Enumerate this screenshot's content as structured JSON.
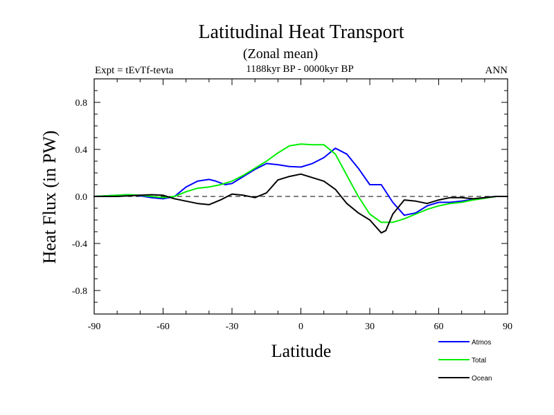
{
  "chart_data": {
    "type": "line",
    "title": "Latitudinal Heat Transport",
    "subtitle": "(Zonal mean)",
    "left_label": "Expt = tEvTf-tevta",
    "center_label": "1188kyr BP - 0000kyr BP",
    "right_label": "ANN",
    "xlabel": "Latitude",
    "ylabel": "Heat Flux (in PW)",
    "xlim": [
      -90,
      90
    ],
    "ylim": [
      -1.0,
      1.0
    ],
    "xticks": [
      -90,
      -60,
      -30,
      0,
      30,
      60,
      90
    ],
    "xtick_labels": [
      "-90",
      "-60",
      "-30",
      "0",
      "30",
      "60",
      "90"
    ],
    "yticks": [
      -0.8,
      -0.4,
      0.0,
      0.4,
      0.8
    ],
    "ytick_labels": [
      "-0.8",
      "-0.4",
      "0.0",
      "0.4",
      "0.8"
    ],
    "zero_line": "dashed",
    "legend_position": "bottom-right",
    "series": [
      {
        "name": "Atmos",
        "color": "#0000ff",
        "x": [
          -90,
          -85,
          -80,
          -75,
          -70,
          -65,
          -60,
          -55,
          -50,
          -45,
          -40,
          -37,
          -33,
          -30,
          -25,
          -20,
          -15,
          -10,
          -5,
          0,
          5,
          10,
          15,
          20,
          25,
          30,
          35,
          40,
          45,
          50,
          55,
          60,
          65,
          70,
          75,
          80,
          85,
          90
        ],
        "y": [
          0.0,
          0.005,
          0.01,
          0.015,
          0.005,
          -0.01,
          -0.02,
          0.0,
          0.08,
          0.13,
          0.145,
          0.13,
          0.1,
          0.11,
          0.17,
          0.23,
          0.28,
          0.27,
          0.255,
          0.25,
          0.28,
          0.33,
          0.41,
          0.36,
          0.24,
          0.1,
          0.1,
          -0.05,
          -0.16,
          -0.14,
          -0.08,
          -0.05,
          -0.05,
          -0.04,
          -0.025,
          -0.01,
          0.0,
          0.0
        ]
      },
      {
        "name": "Total",
        "color": "#00ee00",
        "x": [
          -90,
          -85,
          -80,
          -75,
          -70,
          -65,
          -60,
          -55,
          -50,
          -45,
          -40,
          -35,
          -30,
          -25,
          -20,
          -15,
          -10,
          -5,
          0,
          5,
          10,
          15,
          20,
          25,
          30,
          35,
          40,
          45,
          50,
          55,
          60,
          65,
          70,
          75,
          80,
          85,
          90
        ],
        "y": [
          0.0,
          0.005,
          0.01,
          0.015,
          0.01,
          0.0,
          -0.01,
          0.0,
          0.04,
          0.07,
          0.08,
          0.1,
          0.13,
          0.18,
          0.24,
          0.3,
          0.37,
          0.43,
          0.445,
          0.44,
          0.44,
          0.36,
          0.18,
          0.0,
          -0.15,
          -0.22,
          -0.22,
          -0.19,
          -0.15,
          -0.11,
          -0.08,
          -0.06,
          -0.05,
          -0.03,
          -0.015,
          0.0,
          0.0
        ]
      },
      {
        "name": "Ocean",
        "color": "#000000",
        "x": [
          -90,
          -85,
          -80,
          -75,
          -70,
          -65,
          -60,
          -55,
          -50,
          -45,
          -40,
          -35,
          -30,
          -25,
          -20,
          -15,
          -10,
          -5,
          0,
          5,
          10,
          15,
          20,
          25,
          30,
          35,
          37,
          40,
          45,
          50,
          55,
          60,
          65,
          70,
          75,
          80,
          85,
          90
        ],
        "y": [
          0.0,
          0.0,
          0.0,
          0.005,
          0.01,
          0.015,
          0.01,
          -0.02,
          -0.04,
          -0.06,
          -0.07,
          -0.03,
          0.02,
          0.01,
          -0.01,
          0.03,
          0.14,
          0.17,
          0.19,
          0.16,
          0.13,
          0.06,
          -0.06,
          -0.14,
          -0.2,
          -0.31,
          -0.29,
          -0.15,
          -0.03,
          -0.04,
          -0.06,
          -0.03,
          -0.01,
          -0.01,
          -0.02,
          -0.01,
          0.0,
          0.0
        ]
      }
    ]
  }
}
